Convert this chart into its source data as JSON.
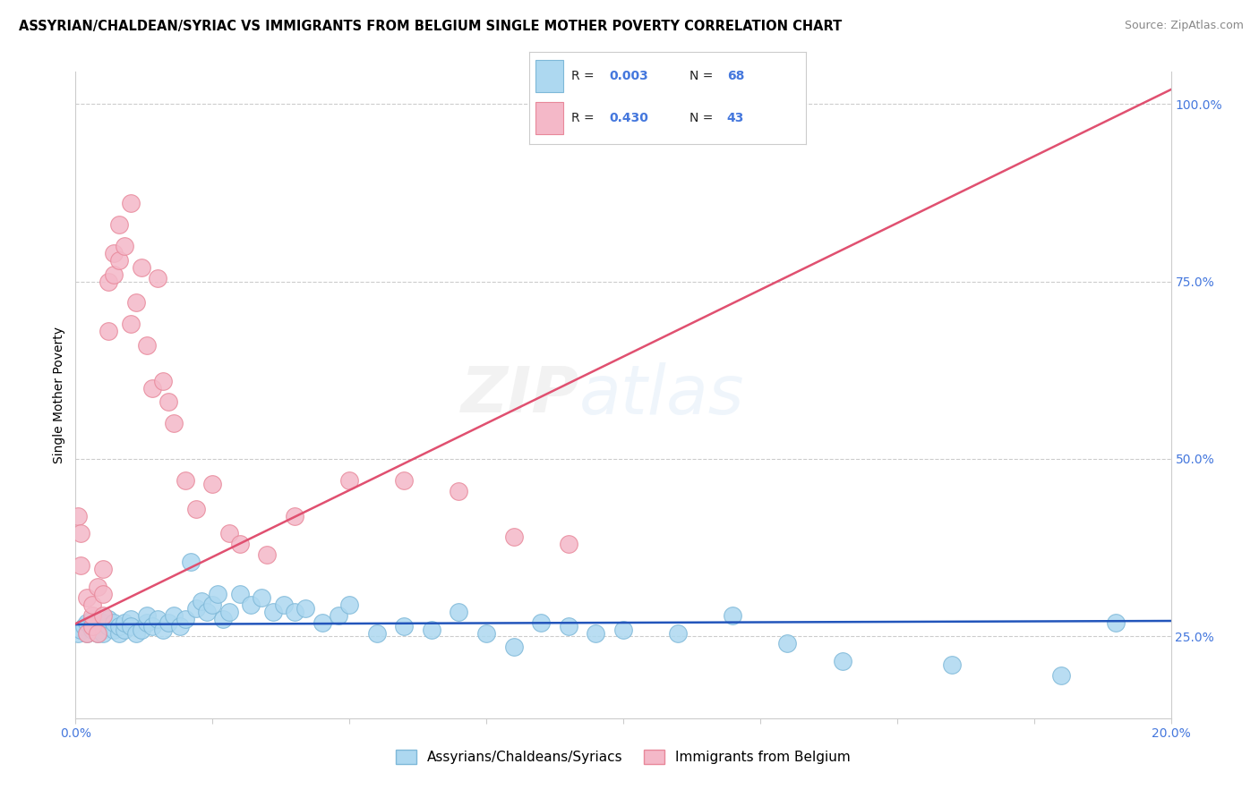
{
  "title": "ASSYRIAN/CHALDEAN/SYRIAC VS IMMIGRANTS FROM BELGIUM SINGLE MOTHER POVERTY CORRELATION CHART",
  "source": "Source: ZipAtlas.com",
  "ylabel": "Single Mother Poverty",
  "yaxis_labels": [
    "100.0%",
    "75.0%",
    "50.0%",
    "25.0%"
  ],
  "yaxis_values": [
    1.0,
    0.75,
    0.5,
    0.25
  ],
  "legend_blue_label": "Assyrians/Chaldeans/Syriacs",
  "legend_pink_label": "Immigrants from Belgium",
  "watermark_zip": "ZIP",
  "watermark_atlas": "atlas",
  "blue_color": "#ADD8F0",
  "blue_edge": "#7EB8D8",
  "pink_color": "#F4B8C8",
  "pink_edge": "#E8889A",
  "blue_line_color": "#2255BB",
  "pink_line_color": "#E05070",
  "tick_color": "#4477DD",
  "background_color": "#FFFFFF",
  "blue_line_y0": 0.267,
  "blue_line_y1": 0.272,
  "pink_line_y0": 0.268,
  "pink_line_y1": 1.02,
  "blue_scatter_x": [
    0.0005,
    0.001,
    0.0015,
    0.002,
    0.002,
    0.003,
    0.003,
    0.004,
    0.004,
    0.005,
    0.005,
    0.005,
    0.006,
    0.006,
    0.007,
    0.007,
    0.008,
    0.008,
    0.009,
    0.009,
    0.01,
    0.01,
    0.011,
    0.012,
    0.013,
    0.013,
    0.014,
    0.015,
    0.016,
    0.017,
    0.018,
    0.019,
    0.02,
    0.021,
    0.022,
    0.023,
    0.024,
    0.025,
    0.026,
    0.027,
    0.028,
    0.03,
    0.032,
    0.034,
    0.036,
    0.038,
    0.04,
    0.042,
    0.045,
    0.048,
    0.05,
    0.055,
    0.06,
    0.065,
    0.07,
    0.075,
    0.08,
    0.085,
    0.09,
    0.095,
    0.1,
    0.11,
    0.12,
    0.13,
    0.14,
    0.16,
    0.18,
    0.19
  ],
  "blue_scatter_y": [
    0.255,
    0.26,
    0.265,
    0.255,
    0.27,
    0.26,
    0.275,
    0.255,
    0.265,
    0.26,
    0.27,
    0.255,
    0.265,
    0.275,
    0.26,
    0.27,
    0.255,
    0.265,
    0.26,
    0.27,
    0.275,
    0.265,
    0.255,
    0.26,
    0.27,
    0.28,
    0.265,
    0.275,
    0.26,
    0.27,
    0.28,
    0.265,
    0.275,
    0.355,
    0.29,
    0.3,
    0.285,
    0.295,
    0.31,
    0.275,
    0.285,
    0.31,
    0.295,
    0.305,
    0.285,
    0.295,
    0.285,
    0.29,
    0.27,
    0.28,
    0.295,
    0.255,
    0.265,
    0.26,
    0.285,
    0.255,
    0.235,
    0.27,
    0.265,
    0.255,
    0.26,
    0.255,
    0.28,
    0.24,
    0.215,
    0.21,
    0.195,
    0.27
  ],
  "pink_scatter_x": [
    0.0005,
    0.001,
    0.001,
    0.002,
    0.002,
    0.003,
    0.003,
    0.003,
    0.004,
    0.004,
    0.005,
    0.005,
    0.005,
    0.006,
    0.006,
    0.007,
    0.007,
    0.008,
    0.008,
    0.009,
    0.01,
    0.01,
    0.011,
    0.012,
    0.013,
    0.014,
    0.015,
    0.016,
    0.017,
    0.018,
    0.02,
    0.022,
    0.025,
    0.028,
    0.03,
    0.035,
    0.04,
    0.05,
    0.06,
    0.07,
    0.08,
    0.09,
    0.12
  ],
  "pink_scatter_y": [
    0.42,
    0.35,
    0.395,
    0.255,
    0.305,
    0.265,
    0.28,
    0.295,
    0.255,
    0.32,
    0.28,
    0.31,
    0.345,
    0.68,
    0.75,
    0.76,
    0.79,
    0.83,
    0.78,
    0.8,
    0.86,
    0.69,
    0.72,
    0.77,
    0.66,
    0.6,
    0.755,
    0.61,
    0.58,
    0.55,
    0.47,
    0.43,
    0.465,
    0.395,
    0.38,
    0.365,
    0.42,
    0.47,
    0.47,
    0.455,
    0.39,
    0.38,
    0.98
  ],
  "xlim": [
    0.0,
    0.2
  ],
  "ylim": [
    0.135,
    1.045
  ],
  "title_fontsize": 10.5,
  "source_fontsize": 9,
  "axis_label_fontsize": 10,
  "tick_fontsize": 10,
  "legend_fontsize": 11,
  "watermark_fontsize_zip": 52,
  "watermark_fontsize_atlas": 55,
  "watermark_alpha": 0.18,
  "watermark_color_zip": "#BBBBBB",
  "watermark_color_atlas": "#AACCEE"
}
